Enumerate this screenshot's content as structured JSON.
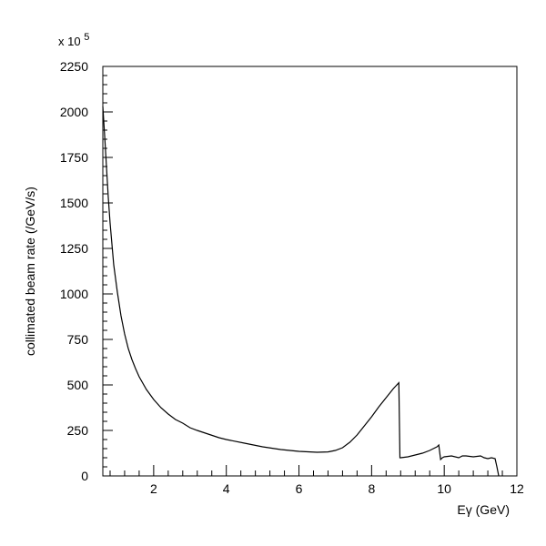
{
  "chart_data": {
    "type": "line",
    "xlabel": "Eγ (GeV)",
    "ylabel": "collimated beam rate (/GeV/s)",
    "y_multiplier": "x 10",
    "y_multiplier_exp": "5",
    "xlim": [
      0.6,
      12
    ],
    "ylim": [
      0,
      2250
    ],
    "xticks": [
      2,
      4,
      6,
      8,
      10,
      12
    ],
    "yticks": [
      0,
      250,
      500,
      750,
      1000,
      1250,
      1500,
      1750,
      2000,
      2250
    ],
    "grid": false,
    "series": [
      {
        "x": [
          0.6,
          0.65,
          0.7,
          0.75,
          0.8,
          0.9,
          1.0,
          1.1,
          1.2,
          1.3,
          1.4,
          1.5,
          1.6,
          1.8,
          2.0,
          2.2,
          2.4,
          2.6,
          2.8,
          3.0,
          3.2,
          3.5,
          3.8,
          4.0,
          4.5,
          5.0,
          5.5,
          6.0,
          6.5,
          6.8,
          7.0,
          7.2,
          7.4,
          7.6,
          7.8,
          8.0,
          8.2,
          8.4,
          8.6,
          8.75,
          8.78,
          8.8,
          9.0,
          9.2,
          9.4,
          9.6,
          9.8,
          9.85,
          9.9,
          9.95,
          10.0,
          10.2,
          10.4,
          10.5,
          10.6,
          10.8,
          11.0,
          11.1,
          11.2,
          11.3,
          11.4,
          11.45,
          11.5
        ],
        "y": [
          2030,
          1870,
          1700,
          1530,
          1390,
          1160,
          1010,
          880,
          780,
          700,
          640,
          590,
          545,
          475,
          420,
          375,
          340,
          310,
          290,
          265,
          250,
          230,
          210,
          200,
          180,
          160,
          145,
          135,
          130,
          132,
          140,
          155,
          185,
          225,
          275,
          325,
          380,
          430,
          480,
          512,
          100,
          100,
          105,
          115,
          125,
          140,
          160,
          170,
          90,
          100,
          105,
          110,
          100,
          110,
          110,
          105,
          110,
          100,
          95,
          100,
          95,
          50,
          0
        ]
      }
    ]
  }
}
